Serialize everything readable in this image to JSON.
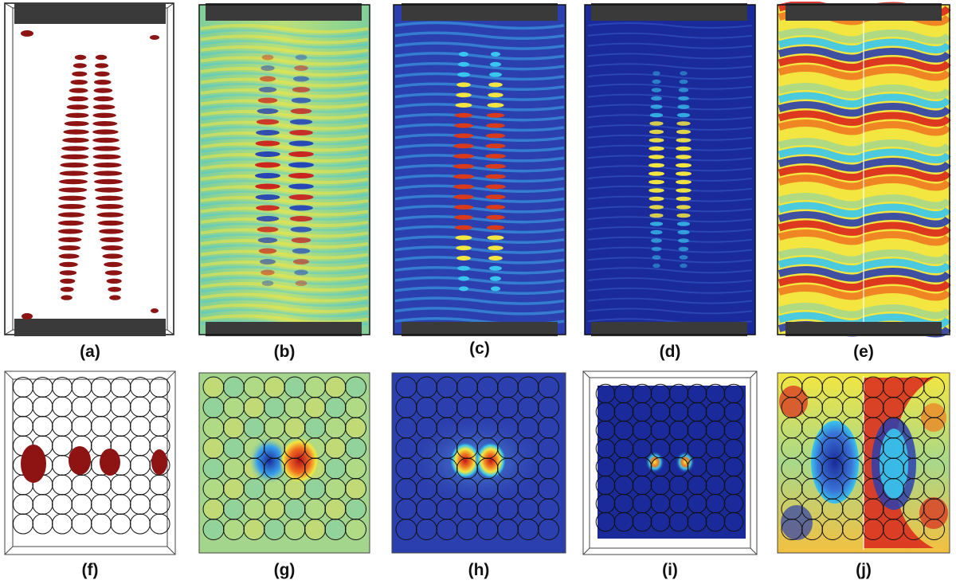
{
  "figure": {
    "panels": [
      {
        "id": "a",
        "label": "(a)",
        "view": "side",
        "render": "isosurface"
      },
      {
        "id": "b",
        "label": "(b)",
        "view": "side",
        "render": "field"
      },
      {
        "id": "c",
        "label": "(c)",
        "view": "side",
        "render": "magnitude"
      },
      {
        "id": "d",
        "label": "(d)",
        "view": "side",
        "render": "intensity"
      },
      {
        "id": "e",
        "label": "(e)",
        "view": "side",
        "render": "phase"
      },
      {
        "id": "f",
        "label": "(f)",
        "view": "top",
        "render": "isosurface"
      },
      {
        "id": "g",
        "label": "(g)",
        "view": "top",
        "render": "field"
      },
      {
        "id": "h",
        "label": "(h)",
        "view": "top",
        "render": "magnitude"
      },
      {
        "id": "i",
        "label": "(i)",
        "view": "top",
        "render": "intensity"
      },
      {
        "id": "j",
        "label": "(j)",
        "view": "top",
        "render": "phase"
      }
    ],
    "colors": {
      "dark_red": "#8e1414",
      "deep_blue": "#1a2a9a",
      "field_green": "#a8d88a",
      "yellow": "#f3e640",
      "red": "#d9261c",
      "cyan": "#38c6ee",
      "outline": "#111111"
    }
  }
}
